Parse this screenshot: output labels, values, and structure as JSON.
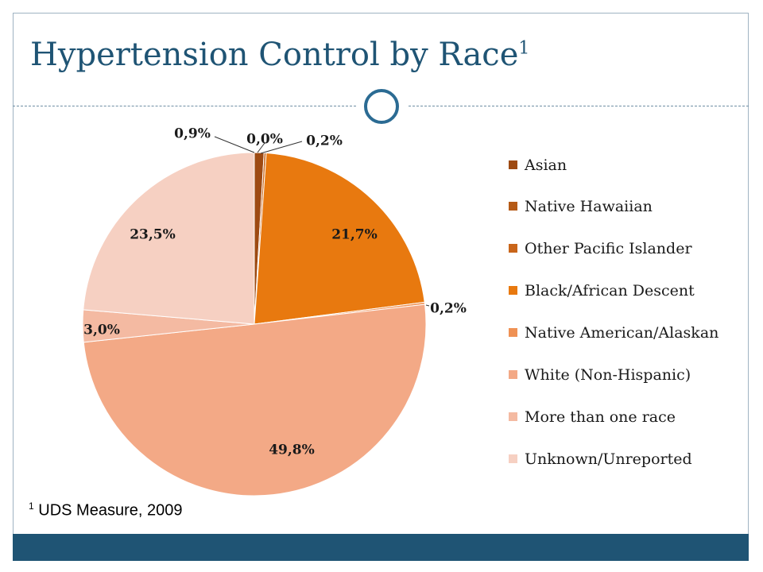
{
  "slide": {
    "title": "Hypertension Control by Race",
    "title_superscript": "1",
    "footnote_marker": "1",
    "footnote": "UDS Measure, 2009"
  },
  "colors": {
    "title": "#1f5474",
    "bar": "#1f5474",
    "ring": "#2b6b93"
  },
  "chart_data": {
    "type": "pie",
    "title": "",
    "start_angle_deg": 0,
    "direction": "clockwise",
    "slices": [
      {
        "name": "Asian",
        "value": 0.9,
        "label": "0,9%",
        "color": "#9e4a12"
      },
      {
        "name": "Native Hawaiian",
        "value": 0.0,
        "label": "0,0%",
        "color": "#b55a16"
      },
      {
        "name": "Other Pacific Islander",
        "value": 0.2,
        "label": "0,2%",
        "color": "#c9651a"
      },
      {
        "name": "Black/African Descent",
        "value": 21.7,
        "label": "21,7%",
        "color": "#e8790f"
      },
      {
        "name": "Native American/Alaskan",
        "value": 0.2,
        "label": "0,2%",
        "color": "#ef9154"
      },
      {
        "name": "White (Non-Hispanic)",
        "value": 49.8,
        "label": "49,8%",
        "color": "#f3a986"
      },
      {
        "name": "More than one race",
        "value": 3.0,
        "label": "3,0%",
        "color": "#f4baa2"
      },
      {
        "name": "Unknown/Unreported",
        "value": 23.5,
        "label": "23,5%",
        "color": "#f6d0c2"
      }
    ],
    "legend_position": "right"
  }
}
